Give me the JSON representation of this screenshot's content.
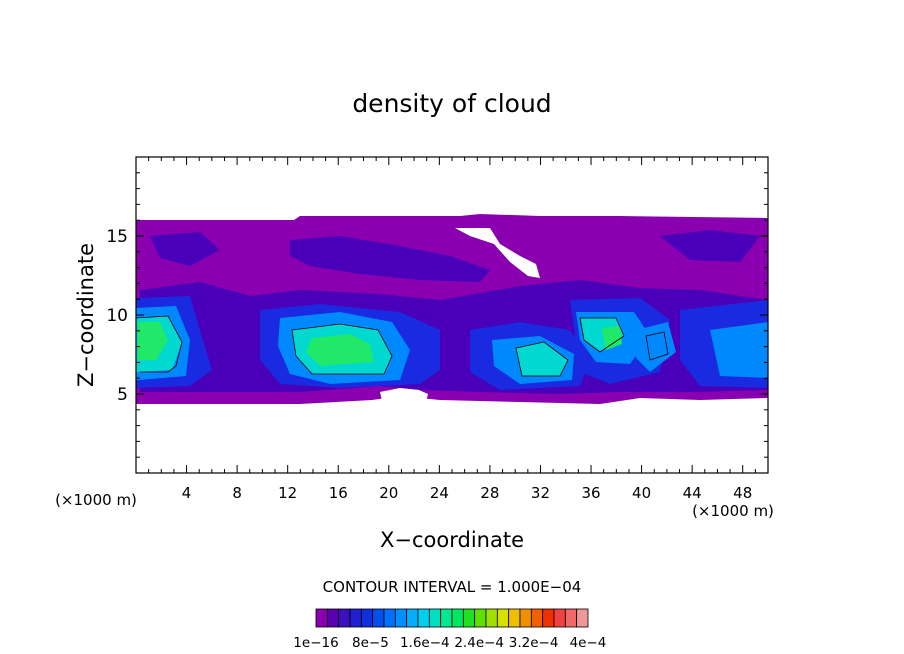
{
  "chart_data": {
    "type": "heatmap",
    "title": "density of cloud",
    "xlabel": "X−coordinate",
    "ylabel": "Z−coordinate",
    "x_unit_left": "(×1000 m)",
    "x_unit_right": "(×1000 m)",
    "xlim": [
      0,
      50
    ],
    "ylim": [
      0,
      20
    ],
    "xticks": [
      4,
      8,
      12,
      16,
      20,
      24,
      28,
      32,
      36,
      40,
      44,
      48
    ],
    "yticks": [
      5,
      10,
      15
    ],
    "contour_interval": "CONTOUR INTERVAL = 1.000E−04",
    "colorbar": {
      "labels": [
        "1e−16",
        "8e−5",
        "1.6e−4",
        "2.4e−4",
        "3.2e−4",
        "4e−4"
      ],
      "colors": [
        "#8a00b0",
        "#5a00b0",
        "#3a10c0",
        "#2020d0",
        "#1030e0",
        "#0050f0",
        "#0070ff",
        "#0090ff",
        "#00b0ff",
        "#00d0f0",
        "#00e0c0",
        "#00e890",
        "#00e860",
        "#20e020",
        "#60e000",
        "#a0e000",
        "#d8e000",
        "#f0c000",
        "#f09000",
        "#f06000",
        "#f03000",
        "#f04040",
        "#f06868",
        "#f09898"
      ]
    },
    "field": {
      "cloud_base_z": 4.7,
      "cloud_top_z": 15.9,
      "core_regions": [
        {
          "x": [
            0.2,
            4.0
          ],
          "z": [
            6.0,
            10.2
          ],
          "level": "high"
        },
        {
          "x": [
            11.8,
            19.2
          ],
          "z": [
            6.2,
            9.7
          ],
          "level": "high"
        },
        {
          "x": [
            28.8,
            34.0
          ],
          "z": [
            6.3,
            8.5
          ],
          "level": "high"
        },
        {
          "x": [
            34.8,
            38.5
          ],
          "z": [
            7.5,
            10.0
          ],
          "level": "high"
        },
        {
          "x": [
            39.8,
            42.5
          ],
          "z": [
            6.8,
            9.5
          ],
          "level": "mid"
        },
        {
          "x": [
            45.5,
            50.0
          ],
          "z": [
            6.5,
            10.0
          ],
          "level": "mid"
        }
      ]
    }
  }
}
